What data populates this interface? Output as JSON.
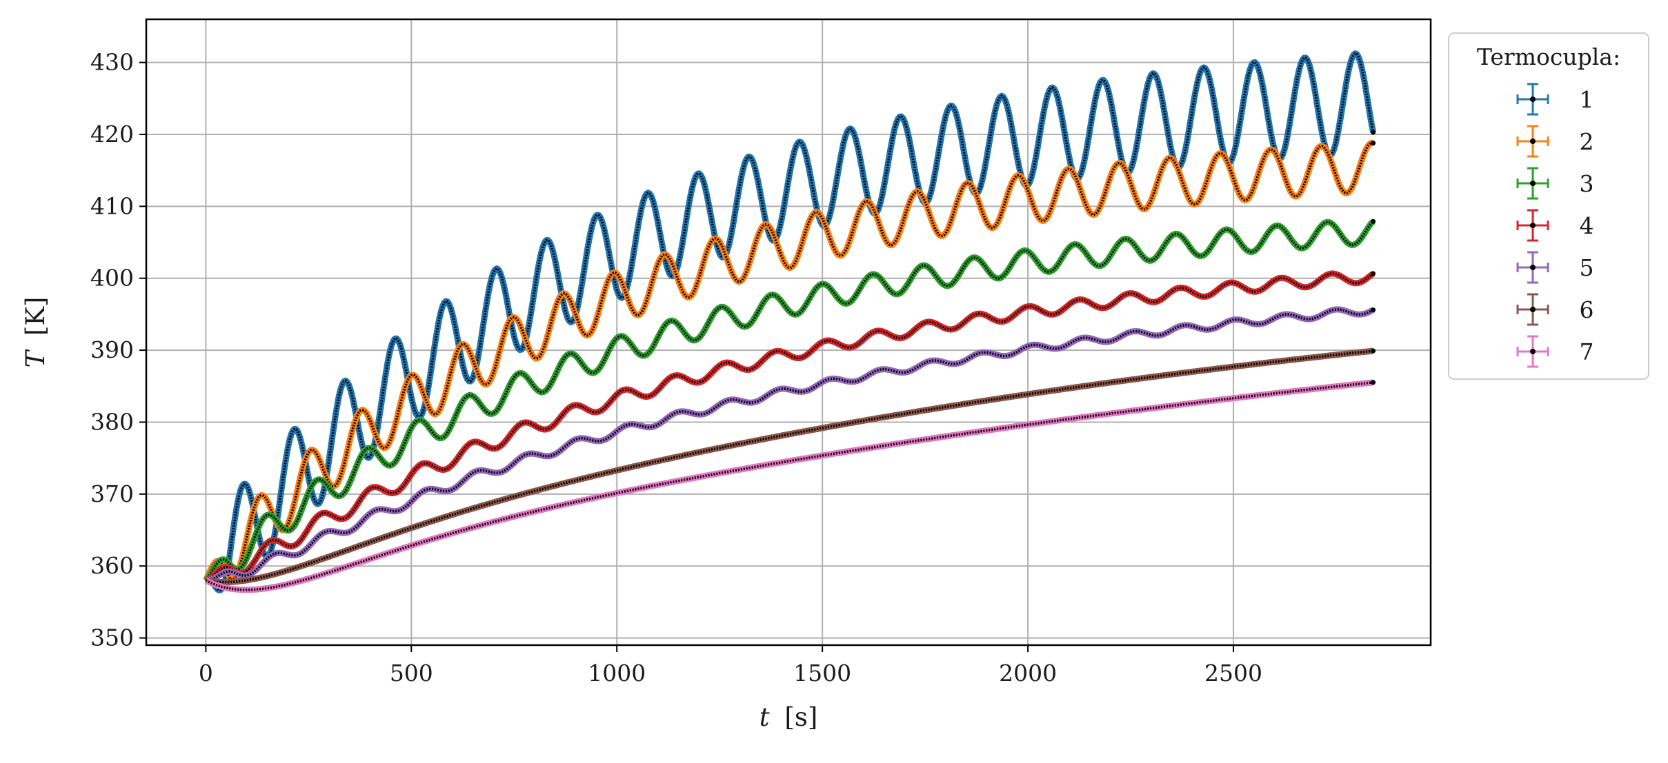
{
  "chart_data": {
    "type": "line",
    "xlabel_var": "t",
    "xlabel_unit": "[s]",
    "ylabel_var": "T",
    "ylabel_unit": "[K]",
    "xlim": [
      -145,
      2980
    ],
    "ylim": [
      349,
      436
    ],
    "xticks": [
      0,
      500,
      1000,
      1500,
      2000,
      2500
    ],
    "yticks": [
      350,
      360,
      370,
      380,
      390,
      400,
      410,
      420,
      430
    ],
    "grid": true,
    "legend": {
      "title": "Termocupla:",
      "placement": "outside-right-top"
    },
    "marker_color": "#000000",
    "series": [
      {
        "name": "1",
        "color": "#1f77b4",
        "x_end": 2840,
        "t0": 358.0,
        "rise": [
          70.0,
          0.00105
        ],
        "sag": 0.0,
        "osc": [
          7.0,
          6.3,
          0.15,
          123,
          0
        ]
      },
      {
        "name": "2",
        "color": "#ff7f0e",
        "x_end": 2840,
        "t0": 358.0,
        "rise": [
          60.5,
          0.00105
        ],
        "sag": 0.0,
        "osc": [
          4.0,
          3.4,
          0.0,
          123,
          40
        ]
      },
      {
        "name": "3",
        "color": "#2ca02c",
        "x_end": 2840,
        "t0": 358.0,
        "rise": [
          52.0,
          0.00095
        ],
        "sag": 0.0,
        "osc": [
          2.3,
          1.7,
          0.0,
          123,
          55
        ]
      },
      {
        "name": "4",
        "color": "#d62728",
        "x_end": 2840,
        "t0": 358.0,
        "rise": [
          48.0,
          0.00075
        ],
        "sag": 3.0,
        "osc": [
          1.3,
          0.8,
          0.0,
          123,
          65
        ]
      },
      {
        "name": "5",
        "color": "#9467bd",
        "x_end": 2840,
        "t0": 358.0,
        "rise": [
          46.0,
          0.0006
        ],
        "sag": 4.0,
        "osc": [
          0.8,
          0.5,
          0.0,
          123,
          75
        ]
      },
      {
        "name": "6",
        "color": "#8c564b",
        "x_end": 2840,
        "t0": 358.0,
        "rise": [
          47.0,
          0.0004
        ],
        "sag": 6.0,
        "osc": [
          0.0,
          0.0,
          0.0,
          123,
          0
        ]
      },
      {
        "name": "7",
        "color": "#e377c2",
        "x_end": 2840,
        "t0": 358.0,
        "rise": [
          48.0,
          0.0003
        ],
        "sag": 9.0,
        "osc": [
          0.0,
          0.0,
          0.0,
          123,
          0
        ]
      }
    ]
  }
}
